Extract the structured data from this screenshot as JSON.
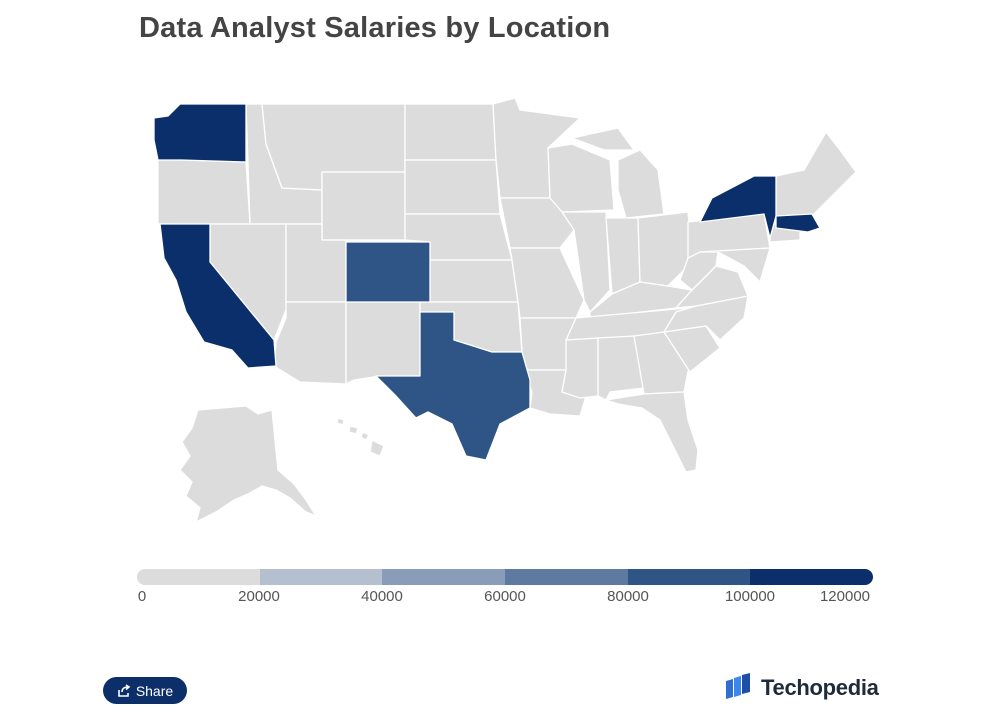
{
  "title": "Data Analyst Salaries by Location",
  "legend": {
    "ticks": [
      "0",
      "20000",
      "40000",
      "60000",
      "80000",
      "100000",
      "120000"
    ],
    "colors": [
      "#dcdcdc",
      "#b4bfcf",
      "#8a9db8",
      "#5f7aa0",
      "#2f5486",
      "#0b2f6b"
    ]
  },
  "states": [
    {
      "name": "Washington",
      "value": 100000,
      "color": "#0b2f6b"
    },
    {
      "name": "California",
      "value": 100000,
      "color": "#0b2f6b"
    },
    {
      "name": "New York",
      "value": 100000,
      "color": "#0b2f6b"
    },
    {
      "name": "Massachusetts",
      "value": 100000,
      "color": "#0b2f6b"
    },
    {
      "name": "Colorado",
      "value": 80000,
      "color": "#2f5486"
    },
    {
      "name": "Texas",
      "value": 80000,
      "color": "#2f5486"
    }
  ],
  "colors": {
    "no_data": "#dcdcdc",
    "state_border": "#ffffff"
  },
  "share": {
    "label": "Share",
    "icon": "share-icon"
  },
  "brand": {
    "name": "Techopedia",
    "icon": "techopedia-logo-icon"
  }
}
